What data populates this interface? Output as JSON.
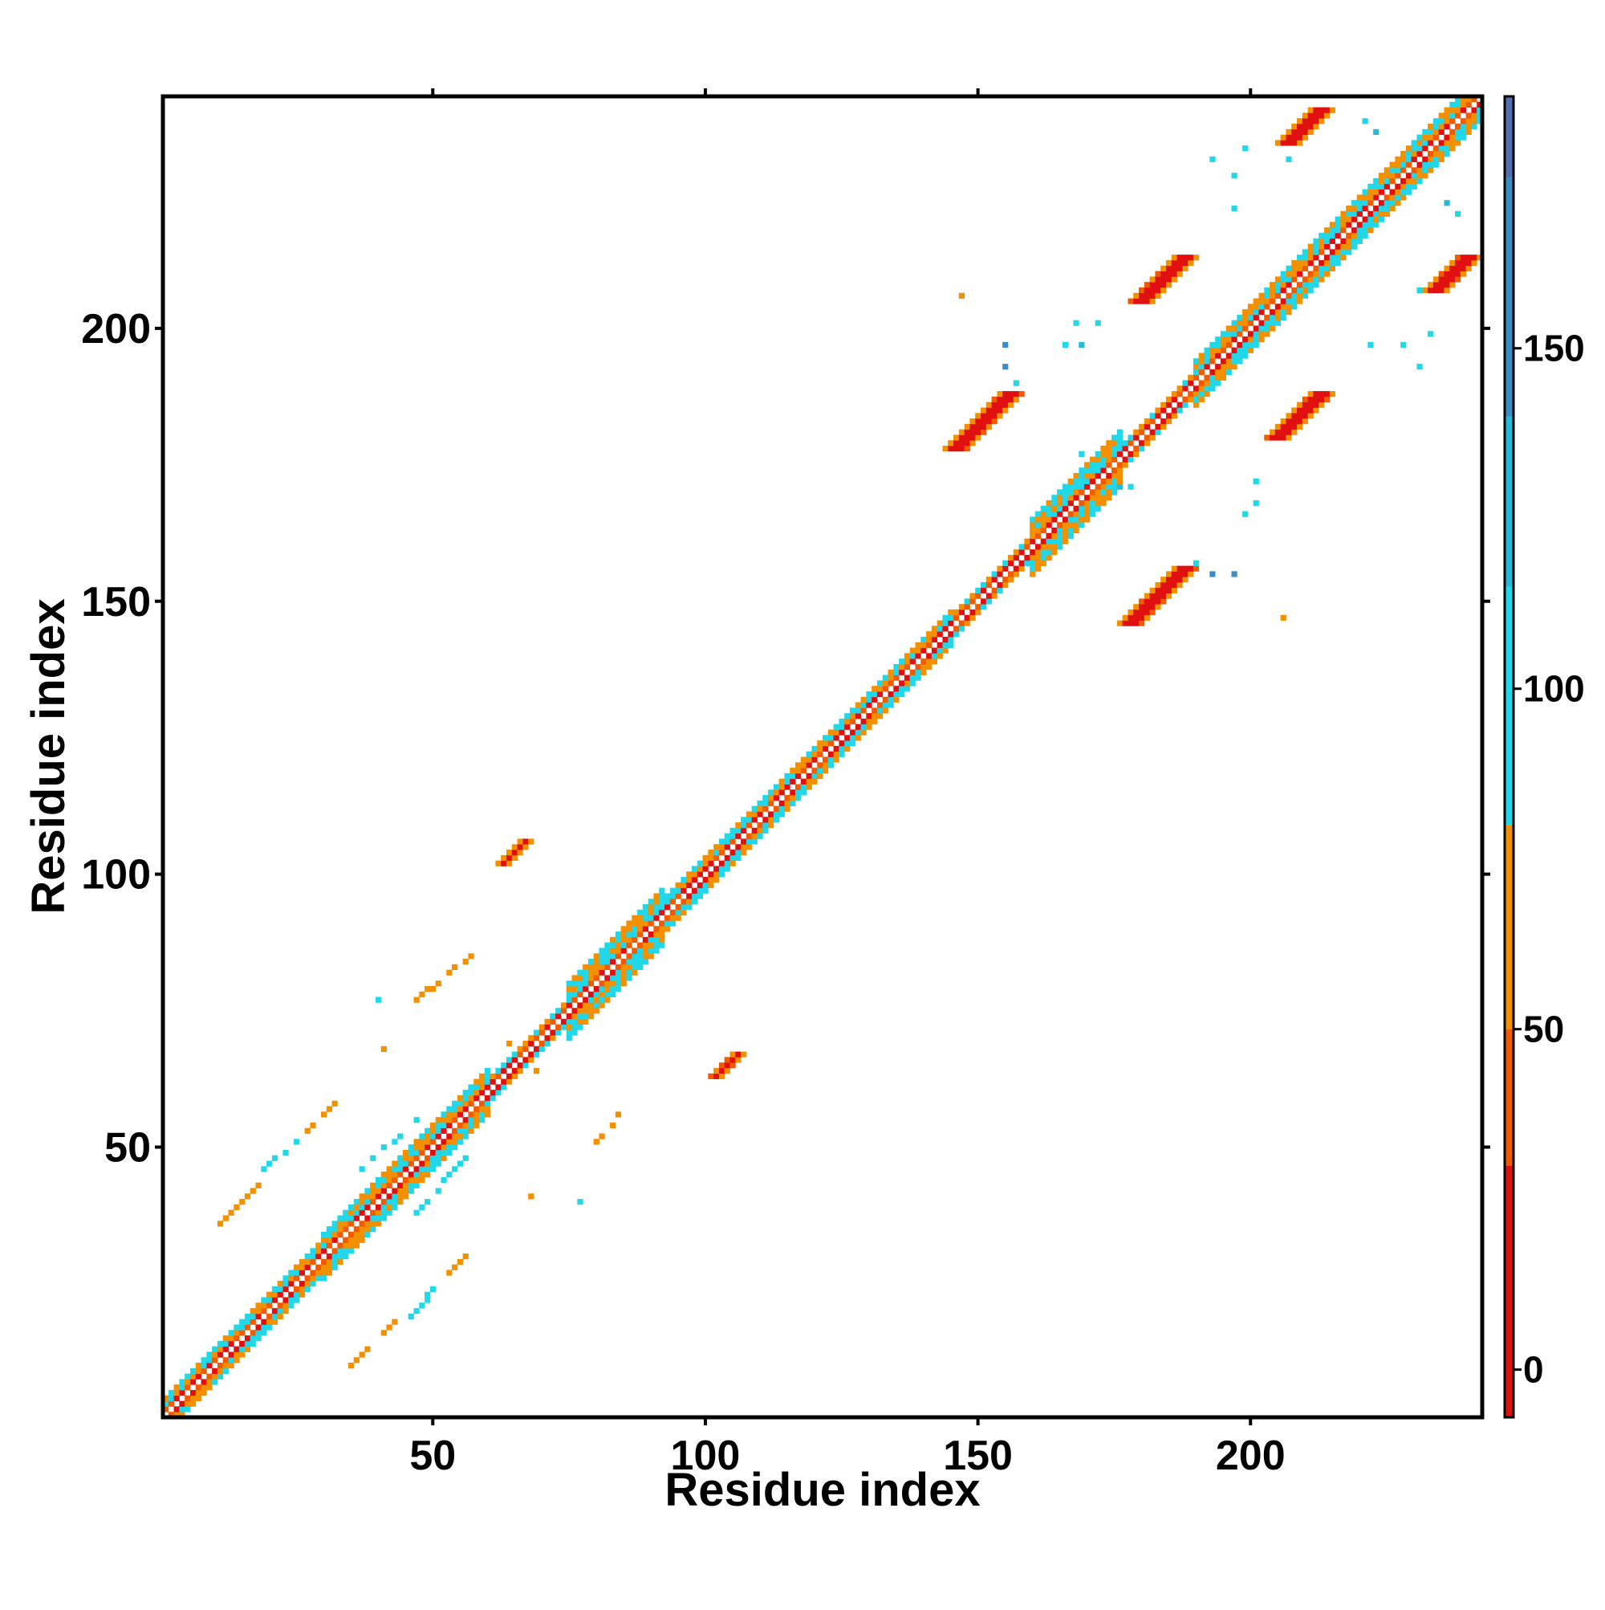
{
  "chart_data": {
    "type": "heatmap",
    "title": "",
    "xlabel": "Residue index",
    "ylabel": "Residue index",
    "xlim": [
      1,
      242
    ],
    "ylim": [
      1,
      242
    ],
    "x_ticks": [
      50,
      100,
      150,
      200
    ],
    "y_ticks": [
      50,
      100,
      150,
      200
    ],
    "colorbar": {
      "range": [
        -7,
        187
      ],
      "ticks": [
        0,
        50,
        100,
        150
      ],
      "colormap": [
        {
          "from": -7,
          "to": 30,
          "color": "#e01010"
        },
        {
          "from": 30,
          "to": 50,
          "color": "#f05a00"
        },
        {
          "from": 50,
          "to": 80,
          "color": "#f29000"
        },
        {
          "from": 80,
          "to": 115,
          "color": "#22d8e8"
        },
        {
          "from": 115,
          "to": 140,
          "color": "#28b8d8"
        },
        {
          "from": 140,
          "to": 175,
          "color": "#3a8cc8"
        },
        {
          "from": 175,
          "to": 187,
          "color": "#5070b0"
        }
      ]
    },
    "diagonal_band": {
      "description_value": "contact map along main diagonal",
      "segments": [
        {
          "start": 1,
          "end": 30,
          "halfwidth": 3
        },
        {
          "start": 30,
          "end": 60,
          "halfwidth": 4
        },
        {
          "start": 60,
          "end": 75,
          "halfwidth": 2
        },
        {
          "start": 75,
          "end": 92,
          "halfwidth": 5
        },
        {
          "start": 92,
          "end": 122,
          "halfwidth": 3
        },
        {
          "start": 122,
          "end": 145,
          "halfwidth": 3
        },
        {
          "start": 145,
          "end": 160,
          "halfwidth": 2
        },
        {
          "start": 160,
          "end": 176,
          "halfwidth": 5
        },
        {
          "start": 176,
          "end": 190,
          "halfwidth": 2
        },
        {
          "start": 190,
          "end": 210,
          "halfwidth": 4
        },
        {
          "start": 210,
          "end": 242,
          "halfwidth": 4
        }
      ]
    },
    "off_diagonal_blobs": [
      {
        "x1": 146,
        "y1": 178,
        "x2": 156,
        "y2": 188,
        "value": 10,
        "width": 3
      },
      {
        "x1": 178,
        "y1": 146,
        "x2": 188,
        "y2": 156,
        "value": 10,
        "width": 3
      },
      {
        "x1": 180,
        "y1": 205,
        "x2": 188,
        "y2": 213,
        "value": 12,
        "width": 3
      },
      {
        "x1": 205,
        "y1": 180,
        "x2": 213,
        "y2": 188,
        "value": 12,
        "width": 3
      },
      {
        "x1": 207,
        "y1": 234,
        "x2": 213,
        "y2": 240,
        "value": 8,
        "width": 3
      },
      {
        "x1": 234,
        "y1": 207,
        "x2": 240,
        "y2": 213,
        "value": 8,
        "width": 3
      },
      {
        "x1": 9,
        "y1": 34,
        "x2": 18,
        "y2": 43,
        "value": 60,
        "width": 1
      },
      {
        "x1": 34,
        "y1": 9,
        "x2": 43,
        "y2": 18,
        "value": 60,
        "width": 1
      },
      {
        "x1": 18,
        "y1": 45,
        "x2": 27,
        "y2": 53,
        "value": 90,
        "width": 1
      },
      {
        "x1": 45,
        "y1": 18,
        "x2": 53,
        "y2": 27,
        "value": 90,
        "width": 1
      },
      {
        "x1": 26,
        "y1": 52,
        "x2": 32,
        "y2": 58,
        "value": 55,
        "width": 1
      },
      {
        "x1": 52,
        "y1": 26,
        "x2": 58,
        "y2": 32,
        "value": 55,
        "width": 1
      },
      {
        "x1": 47,
        "y1": 77,
        "x2": 57,
        "y2": 85,
        "value": 60,
        "width": 1
      },
      {
        "x1": 77,
        "y1": 47,
        "x2": 85,
        "y2": 57,
        "value": 60,
        "width": 1
      },
      {
        "x1": 63,
        "y1": 102,
        "x2": 67,
        "y2": 106,
        "value": 15,
        "width": 2
      },
      {
        "x1": 102,
        "y1": 63,
        "x2": 106,
        "y2": 67,
        "value": 15,
        "width": 2
      },
      {
        "x1": 36,
        "y1": 45,
        "x2": 48,
        "y2": 56,
        "value": 95,
        "width": 1
      },
      {
        "x1": 45,
        "y1": 36,
        "x2": 56,
        "y2": 48,
        "value": 95,
        "width": 1
      }
    ],
    "scatter_cells": [
      {
        "x": 155,
        "y": 197,
        "value": 145
      },
      {
        "x": 155,
        "y": 193,
        "value": 145
      },
      {
        "x": 157,
        "y": 190,
        "value": 110
      },
      {
        "x": 166,
        "y": 197,
        "value": 95
      },
      {
        "x": 169,
        "y": 197,
        "value": 120
      },
      {
        "x": 168,
        "y": 201,
        "value": 95
      },
      {
        "x": 172,
        "y": 201,
        "value": 95
      },
      {
        "x": 147,
        "y": 206,
        "value": 50
      },
      {
        "x": 169,
        "y": 177,
        "value": 95
      },
      {
        "x": 171,
        "y": 174,
        "value": 110
      },
      {
        "x": 176,
        "y": 171,
        "value": 120
      },
      {
        "x": 178,
        "y": 171,
        "value": 110
      },
      {
        "x": 197,
        "y": 155,
        "value": 145
      },
      {
        "x": 193,
        "y": 155,
        "value": 145
      },
      {
        "x": 190,
        "y": 157,
        "value": 110
      },
      {
        "x": 206,
        "y": 147,
        "value": 50
      },
      {
        "x": 201,
        "y": 168,
        "value": 95
      },
      {
        "x": 201,
        "y": 172,
        "value": 95
      },
      {
        "x": 199,
        "y": 166,
        "value": 95
      },
      {
        "x": 193,
        "y": 231,
        "value": 95
      },
      {
        "x": 197,
        "y": 228,
        "value": 95
      },
      {
        "x": 199,
        "y": 233,
        "value": 95
      },
      {
        "x": 197,
        "y": 222,
        "value": 95
      },
      {
        "x": 231,
        "y": 193,
        "value": 95
      },
      {
        "x": 228,
        "y": 197,
        "value": 95
      },
      {
        "x": 233,
        "y": 199,
        "value": 95
      },
      {
        "x": 222,
        "y": 197,
        "value": 95
      },
      {
        "x": 236,
        "y": 223,
        "value": 120
      },
      {
        "x": 223,
        "y": 236,
        "value": 120
      },
      {
        "x": 221,
        "y": 238,
        "value": 95
      },
      {
        "x": 238,
        "y": 221,
        "value": 95
      },
      {
        "x": 207,
        "y": 231,
        "value": 95
      },
      {
        "x": 231,
        "y": 207,
        "value": 95
      },
      {
        "x": 64,
        "y": 69,
        "value": 60
      },
      {
        "x": 69,
        "y": 64,
        "value": 60
      },
      {
        "x": 68,
        "y": 41,
        "value": 60
      },
      {
        "x": 41,
        "y": 68,
        "value": 60
      },
      {
        "x": 40,
        "y": 77,
        "value": 95
      },
      {
        "x": 77,
        "y": 40,
        "value": 95
      }
    ]
  }
}
